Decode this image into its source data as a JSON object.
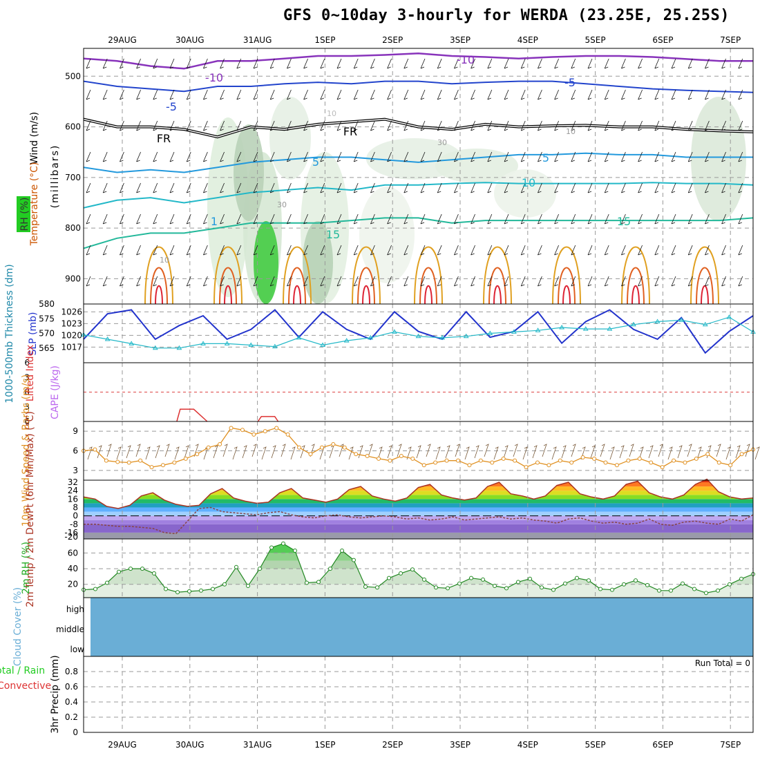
{
  "title": "GFS 0~10day 3-hourly for WERDA (23.25E, 25.25S)",
  "colors": {
    "wind": "#000000",
    "temperature": "#cc5500",
    "rh": "#22cc22",
    "slp": "#2233cc",
    "thickness": "#22b8c8",
    "lifted": "#dd3333",
    "cape": "#bb66ee",
    "windspd": "#e09020",
    "temp2m": "#aa3322",
    "dewpt": "#884444",
    "rh2m": "#22aa22",
    "cloud": "#6aaed6",
    "rain": "#22cc22",
    "convective": "#dd3333"
  },
  "chart_data": [
    {
      "type": "contour",
      "panel": "upper-air",
      "title_labels": [
        "Wind (m/s)",
        "Temperature (°C)",
        "RH (%)"
      ],
      "ylabel": "(millibars)",
      "x_labels": [
        "29AUG",
        "30AUG",
        "31AUG",
        "1SEP",
        "2SEP",
        "3SEP",
        "4SEP",
        "5SEP",
        "6SEP",
        "7SEP"
      ],
      "yticks": [
        500,
        600,
        700,
        800,
        900
      ],
      "ylim": [
        445,
        950
      ],
      "contour_labels": [
        "-10",
        "-10",
        "-5",
        "-5",
        "FR",
        "FR",
        "5",
        "5",
        "10",
        "15",
        "15",
        "1",
        "10",
        "10",
        "30",
        "30",
        "10",
        "10"
      ],
      "freezing_level_mb": [
        585,
        600,
        600,
        605,
        620,
        600,
        605,
        595,
        590,
        585,
        600,
        605,
        595,
        600,
        598,
        597,
        600,
        600,
        605,
        608,
        610
      ],
      "t_minus10_mb": [
        465,
        470,
        480,
        485,
        470,
        470,
        465,
        460,
        460,
        458,
        455,
        460,
        462,
        465,
        462,
        460,
        460,
        462,
        466,
        470,
        470
      ],
      "t_minus5_mb": [
        510,
        520,
        525,
        530,
        520,
        520,
        515,
        512,
        515,
        510,
        510,
        515,
        512,
        510,
        510,
        515,
        520,
        525,
        528,
        530,
        532
      ],
      "t_plus5_mb": [
        680,
        690,
        685,
        690,
        680,
        670,
        665,
        660,
        660,
        665,
        670,
        665,
        660,
        655,
        655,
        652,
        655,
        655,
        660,
        660,
        660
      ],
      "t_plus10_mb": [
        760,
        745,
        740,
        750,
        740,
        730,
        725,
        720,
        725,
        715,
        715,
        712,
        710,
        712,
        712,
        712,
        712,
        710,
        712,
        712,
        715
      ],
      "t_plus15_mb": [
        840,
        820,
        810,
        810,
        800,
        790,
        790,
        790,
        785,
        780,
        780,
        790,
        785,
        785,
        785,
        785,
        785,
        785,
        785,
        785,
        780
      ]
    },
    {
      "type": "line",
      "panel": "slp-thickness",
      "ylabel_left": "1000-500mb Thickness (dm)",
      "ylabel_right": "SLP (mb)",
      "yticks_left": [
        565,
        570,
        575,
        580
      ],
      "yticks_right": [
        1017,
        1020,
        1023,
        1026
      ],
      "ylim_slp": [
        1013,
        1028
      ],
      "ylim_thk": [
        560,
        580
      ],
      "series": [
        {
          "name": "SLP",
          "values": [
            1019,
            1025.5,
            1026.5,
            1019,
            1022.5,
            1025,
            1019,
            1021.5,
            1026.5,
            1019.5,
            1026,
            1021.5,
            1019,
            1026,
            1021,
            1019,
            1026,
            1019.5,
            1021,
            1026,
            1018,
            1023.5,
            1026.5,
            1021.5,
            1019,
            1024.5,
            1015.5,
            1021,
            1025
          ]
        },
        {
          "name": "Thickness",
          "values": [
            569.5,
            568,
            566.5,
            565,
            565,
            566.5,
            566.5,
            566,
            565.5,
            568.5,
            566,
            567.5,
            568.5,
            570.5,
            569,
            568.5,
            569,
            570,
            570.5,
            571,
            572,
            571.5,
            571.5,
            573,
            574,
            574.5,
            573,
            575.5,
            570.5
          ]
        }
      ]
    },
    {
      "type": "line",
      "panel": "instability",
      "ylabel": "Lifted Index / CAPE (J/kg)",
      "yticks": [
        -6,
        -3,
        0,
        3,
        6
      ],
      "tick_labels": [
        "6",
        "3",
        "0",
        "3",
        "6"
      ],
      "series": [
        {
          "name": "Lifted Index",
          "points": [
            [
              1.85,
              6
            ],
            [
              1.9,
              3.5
            ],
            [
              2.1,
              3.5
            ],
            [
              2.3,
              6
            ],
            [
              3.05,
              6
            ],
            [
              3.1,
              5
            ],
            [
              3.3,
              5
            ],
            [
              3.35,
              6
            ]
          ]
        }
      ]
    },
    {
      "type": "line",
      "panel": "10m-wind",
      "ylabel": "10m Wind Speed & Barbs (m/s)",
      "yticks": [
        3,
        6,
        9
      ],
      "ylim": [
        1.5,
        10.5
      ],
      "series": [
        {
          "name": "Wind speed",
          "values": [
            6,
            6.2,
            4.5,
            4.3,
            4.2,
            4.5,
            3.5,
            3.8,
            4.2,
            4.8,
            5.5,
            6.5,
            7,
            9.5,
            9.2,
            8.5,
            9,
            9.5,
            8.5,
            6.5,
            5.5,
            6.5,
            7,
            6.5,
            5.5,
            5.2,
            4.8,
            4.5,
            5.2,
            4.8,
            3.8,
            4.2,
            4.5,
            4.5,
            3.8,
            4.5,
            4.2,
            4.8,
            4.5,
            3.5,
            4.2,
            3.8,
            4.5,
            4.2,
            5,
            4.8,
            4.2,
            3.8,
            4.5,
            4.8,
            4.2,
            3.5,
            4.5,
            4.2,
            4.8,
            5.5,
            4.2,
            3.8,
            5.5,
            6.2
          ]
        }
      ]
    },
    {
      "type": "area",
      "panel": "2m-temp",
      "ylabel": "2m Temp / 2m DewPt (6hr Min/Max) (°C)",
      "yticks": [
        32,
        24,
        16,
        8,
        0,
        -8,
        -16,
        -20
      ],
      "ylim": [
        -22,
        34
      ],
      "series": [
        {
          "name": "2m Temp",
          "values": [
            18,
            16,
            9,
            7,
            10,
            19,
            22,
            15,
            11,
            9,
            10,
            21,
            26,
            17,
            14,
            12,
            13,
            22,
            26,
            17,
            15,
            13,
            16,
            25,
            28,
            19,
            16,
            14,
            17,
            27,
            30,
            20,
            17,
            15,
            17,
            28,
            32,
            21,
            19,
            16,
            19,
            29,
            32,
            21,
            18,
            16,
            19,
            30,
            33,
            22,
            18,
            16,
            20,
            30,
            35,
            23,
            18,
            16,
            17
          ]
        },
        {
          "name": "2m DewPt",
          "values": [
            -8,
            -8,
            -9,
            -10,
            -10,
            -11,
            -12,
            -16,
            -17,
            -5,
            7,
            8,
            4,
            3,
            2,
            1,
            3,
            4,
            1,
            -1,
            -2,
            0,
            1,
            -1,
            -2,
            -1,
            0,
            -1,
            -3,
            -2,
            -4,
            -3,
            -1,
            -4,
            -3,
            -2,
            -1,
            -3,
            -2,
            -4,
            -5,
            -7,
            -3,
            -2,
            -5,
            -7,
            -6,
            -8,
            -7,
            -3,
            -8,
            -9,
            -6,
            -5,
            -7,
            -8,
            -3,
            -5,
            1
          ]
        }
      ]
    },
    {
      "type": "area",
      "panel": "2m-rh",
      "ylabel": "2m RH (%)",
      "yticks": [
        20,
        40,
        60
      ],
      "ylim": [
        3,
        78
      ],
      "series": [
        {
          "name": "2m RH",
          "values": [
            13,
            14,
            22,
            36,
            40,
            40,
            34,
            14,
            10,
            11,
            12,
            14,
            20,
            42,
            18,
            40,
            67,
            72,
            63,
            22,
            23,
            40,
            63,
            51,
            17,
            16,
            28,
            34,
            39,
            26,
            16,
            15,
            21,
            28,
            26,
            18,
            15,
            23,
            27,
            16,
            13,
            21,
            28,
            25,
            14,
            13,
            20,
            25,
            19,
            12,
            12,
            21,
            14,
            9,
            12,
            20,
            27,
            33
          ]
        }
      ]
    },
    {
      "type": "area",
      "panel": "cloud-cover",
      "ylabel": "Cloud Cover (%)",
      "levels": [
        "high",
        "middle",
        "low"
      ]
    },
    {
      "type": "bar",
      "panel": "precip",
      "ylabel": "3hr Precip (mm)",
      "series_labels": [
        "Total / Rain",
        "Convective"
      ],
      "yticks": [
        0,
        0.2,
        0.4,
        0.6,
        0.8
      ],
      "ytick_labels": [
        "0",
        "0.2",
        "0.4",
        "0.6",
        "0.8"
      ],
      "ylim": [
        0,
        1
      ],
      "values": [],
      "run_total_label": "Run Total = 0"
    }
  ]
}
